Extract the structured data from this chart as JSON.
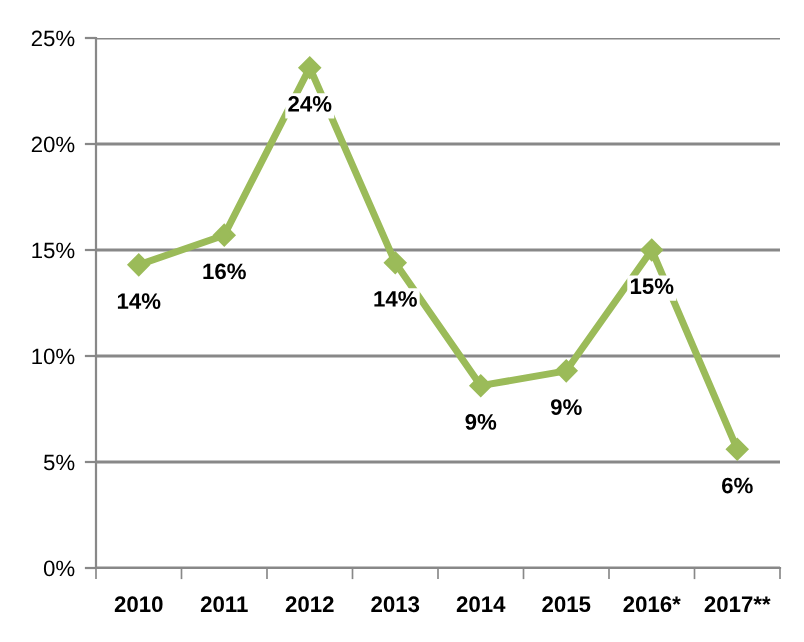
{
  "chart_data": {
    "type": "line",
    "categories": [
      "2010",
      "2011",
      "2012",
      "2013",
      "2014",
      "2015",
      "2016*",
      "2017**"
    ],
    "series": [
      {
        "color": "#9bbb59",
        "values": [
          14.3,
          15.7,
          23.6,
          14.4,
          8.6,
          9.3,
          15.0,
          5.6
        ],
        "value_labels": [
          "14%",
          "16%",
          "24%",
          "14%",
          "9%",
          "9%",
          "15%",
          "6%"
        ]
      }
    ],
    "ylim": [
      0,
      25
    ],
    "yticks": [
      {
        "value": 0,
        "label": "0%"
      },
      {
        "value": 5,
        "label": "5%"
      },
      {
        "value": 10,
        "label": "10%"
      },
      {
        "value": 15,
        "label": "15%"
      },
      {
        "value": 20,
        "label": "20%"
      },
      {
        "value": 25,
        "label": "25%"
      }
    ],
    "grid": "y",
    "marker": "diamond",
    "line_style": "solid"
  }
}
